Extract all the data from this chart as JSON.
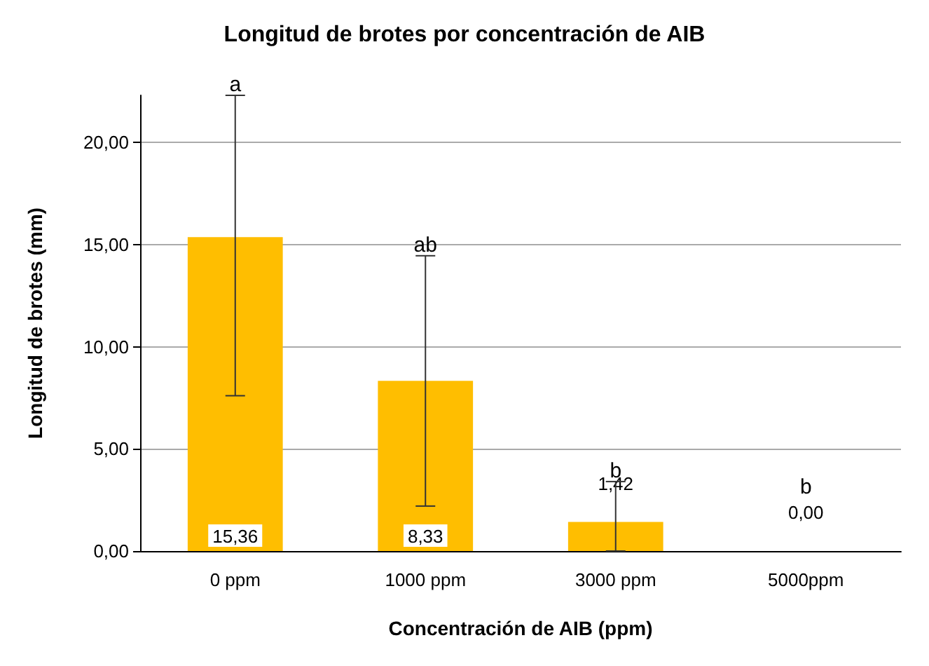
{
  "chart_data": {
    "type": "bar",
    "title": "Longitud de brotes por concentración de AIB",
    "xlabel": "Concentración de AIB (ppm)",
    "ylabel": "Longitud de brotes (mm)",
    "categories": [
      "0 ppm",
      "1000 ppm",
      "3000 ppm",
      "5000ppm"
    ],
    "values": [
      15.36,
      8.33,
      1.42,
      0.0
    ],
    "value_labels": [
      "15,36",
      "8,33",
      "1,42",
      "0,00"
    ],
    "errors": [
      [
        7.6,
        22.3
      ],
      [
        2.2,
        14.45
      ],
      [
        0,
        3.4
      ],
      null
    ],
    "color": "#ffbe00",
    "ylim": [
      0,
      22.3
    ],
    "yticks": [
      {
        "value": 0,
        "label": "0,00"
      },
      {
        "value": 5,
        "label": "5,00"
      },
      {
        "value": 10,
        "label": "10,00"
      },
      {
        "value": 15,
        "label": "15,00"
      },
      {
        "value": 20,
        "label": "20,00"
      }
    ],
    "grid": "y",
    "annotations": [
      {
        "text": "a",
        "x": "0 ppm",
        "y": 22.3
      },
      {
        "text": "ab",
        "x": "1000 ppm",
        "y": 14.45
      },
      {
        "text": "b",
        "x": "3000 ppm",
        "y": 3.4
      },
      {
        "text": "b",
        "x": "5000ppm",
        "y": 0
      }
    ]
  }
}
